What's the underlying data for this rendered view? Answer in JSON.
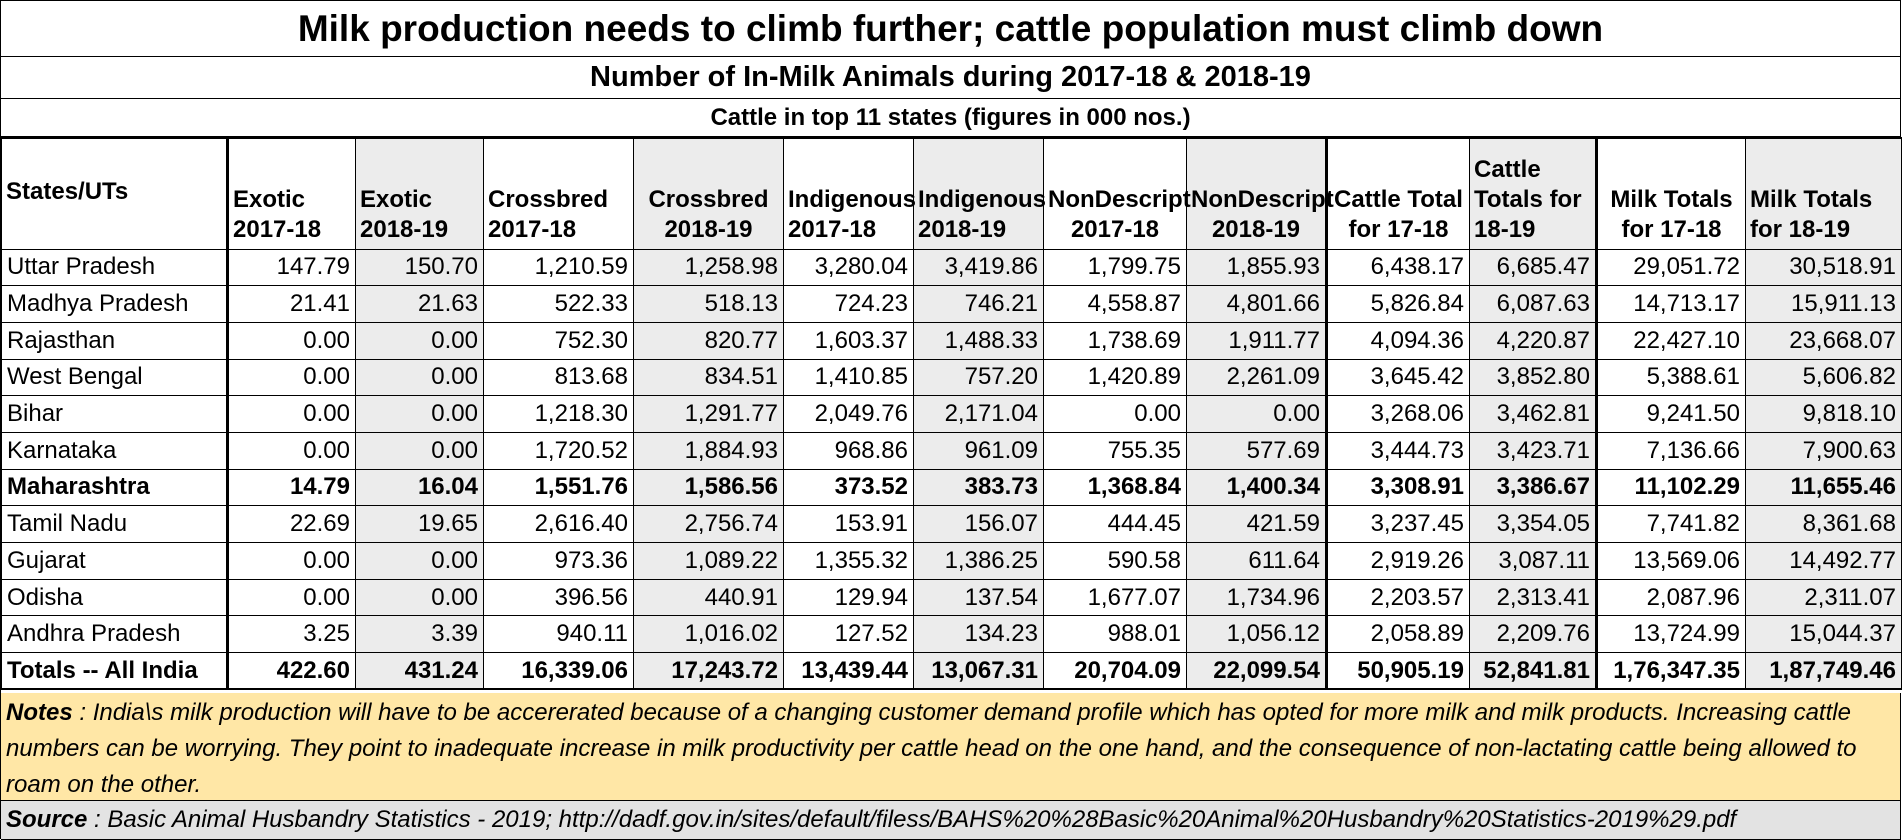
{
  "title": "Milk production needs to climb further; cattle population must climb down",
  "subtitle": "Number of In-Milk Animals during 2017-18 & 2018-19",
  "subtitle2": "Cattle in top 11 states   (figures in 000 nos.)",
  "table": {
    "headers": [
      "States/UTs",
      "Exotic 2017-18",
      "Exotic 2018-19",
      "Crossbred 2017-18",
      "Crossbred 2018-19",
      "Indigenous 2017-18",
      "Indigenous 2018-19",
      "NonDescript 2017-18",
      "NonDescript 2018-19",
      "Cattle Total for 17-18",
      "Cattle Totals for 18-19",
      "Milk Totals for 17-18",
      "Milk Totals for 18-19"
    ],
    "rows": [
      [
        "Uttar Pradesh",
        "147.79",
        "150.70",
        "1,210.59",
        "1,258.98",
        "3,280.04",
        "3,419.86",
        "1,799.75",
        "1,855.93",
        "6,438.17",
        "6,685.47",
        "29,051.72",
        "30,518.91"
      ],
      [
        "Madhya Pradesh",
        "21.41",
        "21.63",
        "522.33",
        "518.13",
        "724.23",
        "746.21",
        "4,558.87",
        "4,801.66",
        "5,826.84",
        "6,087.63",
        "14,713.17",
        "15,911.13"
      ],
      [
        "Rajasthan",
        "0.00",
        "0.00",
        "752.30",
        "820.77",
        "1,603.37",
        "1,488.33",
        "1,738.69",
        "1,911.77",
        "4,094.36",
        "4,220.87",
        "22,427.10",
        "23,668.07"
      ],
      [
        "West Bengal",
        "0.00",
        "0.00",
        "813.68",
        "834.51",
        "1,410.85",
        "757.20",
        "1,420.89",
        "2,261.09",
        "3,645.42",
        "3,852.80",
        "5,388.61",
        "5,606.82"
      ],
      [
        "Bihar",
        "0.00",
        "0.00",
        "1,218.30",
        "1,291.77",
        "2,049.76",
        "2,171.04",
        "0.00",
        "0.00",
        "3,268.06",
        "3,462.81",
        "9,241.50",
        "9,818.10"
      ],
      [
        "Karnataka",
        "0.00",
        "0.00",
        "1,720.52",
        "1,884.93",
        "968.86",
        "961.09",
        "755.35",
        "577.69",
        "3,444.73",
        "3,423.71",
        "7,136.66",
        "7,900.63"
      ],
      [
        "Maharashtra",
        "14.79",
        "16.04",
        "1,551.76",
        "1,586.56",
        "373.52",
        "383.73",
        "1,368.84",
        "1,400.34",
        "3,308.91",
        "3,386.67",
        "11,102.29",
        "11,655.46"
      ],
      [
        "Tamil Nadu",
        "22.69",
        "19.65",
        "2,616.40",
        "2,756.74",
        "153.91",
        "156.07",
        "444.45",
        "421.59",
        "3,237.45",
        "3,354.05",
        "7,741.82",
        "8,361.68"
      ],
      [
        "Gujarat",
        "0.00",
        "0.00",
        "973.36",
        "1,089.22",
        "1,355.32",
        "1,386.25",
        "590.58",
        "611.64",
        "2,919.26",
        "3,087.11",
        "13,569.06",
        "14,492.77"
      ],
      [
        "Odisha",
        "0.00",
        "0.00",
        "396.56",
        "440.91",
        "129.94",
        "137.54",
        "1,677.07",
        "1,734.96",
        "2,203.57",
        "2,313.41",
        "2,087.96",
        "2,311.07"
      ],
      [
        "Andhra Pradesh",
        "3.25",
        "3.39",
        "940.11",
        "1,016.02",
        "127.52",
        "134.23",
        "988.01",
        "1,056.12",
        "2,058.89",
        "2,209.76",
        "13,724.99",
        "15,044.37"
      ]
    ],
    "totals": [
      "Totals -- All India",
      "422.60",
      "431.24",
      "16,339.06",
      "17,243.72",
      "13,439.44",
      "13,067.31",
      "20,704.09",
      "22,099.54",
      "50,905.19",
      "52,841.81",
      "1,76,347.35",
      "1,87,749.46"
    ]
  },
  "notes": {
    "label": "Notes",
    "text": " : India\\s milk production will have to be accererated because of a changing customer demand profile which has opted for more milk and milk products.  Increasing cattle numbers can be worrying.  They point to inadequate increase in milk productivity per cattle head on the one hand, and the consequence of non-lactating cattle being allowed to roam on the other."
  },
  "source": {
    "label": "Source",
    "text": " :  Basic Animal Husbandry Statistics - 2019; http://dadf.gov.in/sites/default/filess/BAHS%20%28Basic%20Animal%20Husbandry%20Statistics-2019%29.pdf"
  },
  "colors": {
    "notes_bg": "#ffe7a6",
    "source_bg": "#e3e3e3",
    "shaded_col": "#ececec"
  }
}
